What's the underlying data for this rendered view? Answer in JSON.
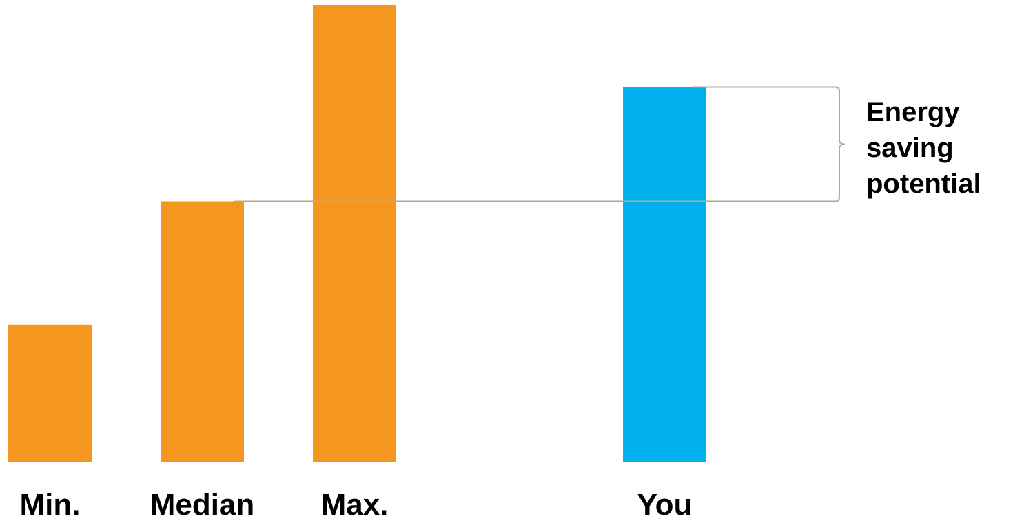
{
  "chart_data": {
    "type": "bar",
    "categories": [
      "Min.",
      "Median",
      "Max.",
      "You"
    ],
    "values": [
      30,
      57,
      100,
      82
    ],
    "ylim": [
      0,
      100
    ],
    "grid": false,
    "legend": "none",
    "bar_colors": [
      "#F5961F",
      "#F5961F",
      "#F5961F",
      "#02AFEF"
    ],
    "annotation": {
      "lines": [
        "Energy",
        "saving",
        "potential"
      ],
      "from_category": "Median",
      "to_category": "You",
      "line_color": "#B8A88A"
    }
  }
}
